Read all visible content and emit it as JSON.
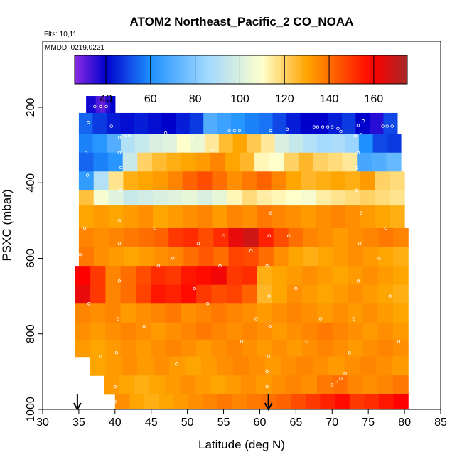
{
  "chart_data": {
    "type": "heatmap",
    "title": "ATOM2 Northeast_Pacific_2 CO_NOAA",
    "annotations": [
      "Flts: 10,11",
      "MMDD: 0219,0221"
    ],
    "xlabel": "Latitude (deg N)",
    "ylabel": "PSXC (mbar)",
    "xlim": [
      30,
      85
    ],
    "ylim": [
      1000,
      25
    ],
    "x_ticks": [
      30,
      35,
      40,
      45,
      50,
      55,
      60,
      65,
      70,
      75,
      80,
      85
    ],
    "y_ticks": [
      200,
      400,
      600,
      800,
      1000
    ],
    "colorbar": {
      "min": 26,
      "max": 175,
      "ticks": [
        40,
        60,
        80,
        100,
        120,
        140,
        160
      ],
      "colors": [
        "#8a2be2",
        "#0000cd",
        "#1e90ff",
        "#9fd8ff",
        "#ffffcc",
        "#ffa500",
        "#ff0000",
        "#a52a2a"
      ],
      "stops": [
        26,
        40,
        60,
        85,
        110,
        130,
        160,
        175
      ]
    },
    "arrows_at_latitude": [
      34.8,
      61.2
    ],
    "layers": [
      {
        "p": [
          170,
          215
        ],
        "lat": [
          36.0,
          40.0
        ],
        "values": [
          38,
          38,
          32,
          30,
          36,
          40
        ]
      },
      {
        "p": [
          215,
          270
        ],
        "lat": [
          35.0,
          79.0
        ],
        "values": [
          54,
          48,
          44,
          42,
          44,
          42,
          40,
          44,
          48,
          70,
          66,
          62,
          58,
          56,
          50,
          44,
          40,
          40,
          44,
          48,
          40,
          36,
          50
        ]
      },
      {
        "p": [
          270,
          320
        ],
        "lat": [
          35.0,
          79.5
        ],
        "values": [
          58,
          62,
          70,
          90,
          95,
          100,
          102,
          110,
          105,
          115,
          125,
          130,
          122,
          115,
          100,
          95,
          90,
          86,
          88,
          84,
          60,
          50,
          48
        ]
      },
      {
        "p": [
          320,
          370
        ],
        "lat": [
          35.0,
          79.5
        ],
        "values": [
          54,
          58,
          62,
          96,
          120,
          125,
          128,
          130,
          132,
          136,
          130,
          126,
          112,
          110,
          120,
          126,
          120,
          118,
          115,
          68,
          70,
          74
        ]
      },
      {
        "p": [
          370,
          420
        ],
        "lat": [
          35.0,
          80.0
        ],
        "values": [
          64,
          90,
          116,
          128,
          130,
          132,
          136,
          142,
          146,
          140,
          134,
          138,
          142,
          136,
          130,
          126,
          128,
          130,
          128,
          132,
          120,
          118
        ]
      },
      {
        "p": [
          420,
          460
        ],
        "lat": [
          35.0,
          80.0
        ],
        "values": [
          124,
          108,
          102,
          96,
          98,
          100,
          102,
          104,
          100,
          104,
          112,
          118,
          114,
          112,
          110,
          108,
          114,
          116,
          118,
          120,
          118,
          116
        ]
      },
      {
        "p": [
          460,
          520
        ],
        "lat": [
          35.0,
          80.0
        ],
        "values": [
          130,
          132,
          130,
          132,
          134,
          130,
          132,
          134,
          136,
          132,
          136,
          134,
          138,
          136,
          134,
          132,
          134,
          136,
          134,
          132,
          130,
          128
        ]
      },
      {
        "p": [
          520,
          570
        ],
        "lat": [
          35.0,
          80.5
        ],
        "values": [
          136,
          134,
          136,
          138,
          140,
          142,
          150,
          152,
          146,
          152,
          164,
          168,
          154,
          146,
          140,
          136,
          134,
          132,
          134,
          136,
          138,
          136
        ]
      },
      {
        "p": [
          570,
          620
        ],
        "lat": [
          35.0,
          80.5
        ],
        "values": [
          138,
          134,
          132,
          130,
          132,
          134,
          136,
          140,
          144,
          140,
          148,
          146,
          140,
          134,
          130,
          128,
          130,
          132,
          134,
          132,
          130,
          128
        ]
      },
      {
        "p": [
          620,
          670
        ],
        "lat": [
          34.5,
          80.5
        ],
        "values": [
          160,
          150,
          136,
          140,
          146,
          152,
          150,
          156,
          158,
          162,
          150,
          152,
          128,
          130,
          132,
          134,
          132,
          130,
          132,
          134,
          132,
          130
        ]
      },
      {
        "p": [
          670,
          720
        ],
        "lat": [
          34.5,
          80.5
        ],
        "values": [
          164,
          150,
          136,
          140,
          148,
          156,
          154,
          158,
          150,
          146,
          148,
          142,
          126,
          130,
          134,
          132,
          130,
          132,
          134,
          132,
          130,
          128
        ]
      },
      {
        "p": [
          720,
          770
        ],
        "lat": [
          34.5,
          80.5
        ],
        "values": [
          136,
          134,
          136,
          132,
          134,
          136,
          138,
          134,
          136,
          138,
          136,
          134,
          132,
          134,
          136,
          134,
          132,
          134,
          132,
          134,
          132,
          130
        ]
      },
      {
        "p": [
          770,
          815
        ],
        "lat": [
          34.5,
          80.5
        ],
        "values": [
          134,
          132,
          134,
          136,
          134,
          132,
          134,
          136,
          138,
          136,
          134,
          136,
          134,
          132,
          134,
          136,
          138,
          136,
          134,
          132,
          134,
          132
        ]
      },
      {
        "p": [
          815,
          860
        ],
        "lat": [
          34.5,
          80.5
        ],
        "values": [
          132,
          130,
          132,
          134,
          132,
          134,
          136,
          134,
          132,
          134,
          136,
          134,
          132,
          134,
          132,
          134,
          136,
          134,
          132,
          134,
          136,
          134
        ]
      },
      {
        "p": [
          860,
          910
        ],
        "lat": [
          36.5,
          80.5
        ],
        "values": [
          130,
          132,
          134,
          132,
          134,
          132,
          130,
          132,
          134,
          136,
          134,
          132,
          134,
          136,
          134,
          132,
          134,
          136,
          134,
          132
        ]
      },
      {
        "p": [
          910,
          960
        ],
        "lat": [
          38.5,
          80.5
        ],
        "values": [
          132,
          130,
          128,
          130,
          132,
          134,
          132,
          130,
          132,
          134,
          132,
          134,
          136,
          134,
          138,
          140,
          136,
          134,
          136,
          138
        ]
      },
      {
        "p": [
          960,
          1000
        ],
        "lat": [
          40.0,
          80.5
        ],
        "values": [
          134,
          130,
          128,
          130,
          132,
          134,
          136,
          138,
          136,
          138,
          140,
          142,
          146,
          150,
          154,
          158,
          150,
          152,
          156,
          160
        ]
      }
    ],
    "flight_points": [
      [
        36.3,
        240
      ],
      [
        37.2,
        198
      ],
      [
        38.0,
        198
      ],
      [
        38.8,
        198
      ],
      [
        39.5,
        250
      ],
      [
        41.5,
        275
      ],
      [
        42.0,
        275
      ],
      [
        47.0,
        268
      ],
      [
        50.5,
        280
      ],
      [
        53.5,
        312
      ],
      [
        55.8,
        262
      ],
      [
        56.5,
        262
      ],
      [
        57.2,
        262
      ],
      [
        61.5,
        262
      ],
      [
        63.8,
        258
      ],
      [
        67.5,
        252
      ],
      [
        68.0,
        252
      ],
      [
        68.7,
        252
      ],
      [
        69.4,
        252
      ],
      [
        70.0,
        252
      ],
      [
        70.8,
        256
      ],
      [
        71.2,
        264
      ],
      [
        73.2,
        276
      ],
      [
        73.6,
        248
      ],
      [
        74.0,
        266
      ],
      [
        74.3,
        236
      ],
      [
        77.0,
        250
      ],
      [
        77.6,
        250
      ],
      [
        78.3,
        250
      ],
      [
        73.6,
        320
      ],
      [
        73.4,
        360
      ],
      [
        73.4,
        420
      ],
      [
        74.0,
        480
      ],
      [
        73.8,
        560
      ],
      [
        73.6,
        660
      ],
      [
        73.0,
        760
      ],
      [
        72.4,
        850
      ],
      [
        71.8,
        905
      ],
      [
        71.2,
        918
      ],
      [
        70.6,
        925
      ],
      [
        70.0,
        935
      ],
      [
        40.6,
        280
      ],
      [
        40.6,
        320
      ],
      [
        40.8,
        360
      ],
      [
        40.8,
        420
      ],
      [
        40.6,
        500
      ],
      [
        40.6,
        560
      ],
      [
        40.6,
        660
      ],
      [
        40.4,
        760
      ],
      [
        40.2,
        850
      ],
      [
        40.0,
        940
      ],
      [
        40.0,
        980
      ],
      [
        61.2,
        430
      ],
      [
        61.5,
        480
      ],
      [
        61.3,
        540
      ],
      [
        61.0,
        620
      ],
      [
        61.3,
        700
      ],
      [
        61.4,
        780
      ],
      [
        61.2,
        860
      ],
      [
        61.0,
        900
      ],
      [
        61.0,
        940
      ],
      [
        36.0,
        320
      ],
      [
        36.2,
        380
      ],
      [
        35.8,
        520
      ],
      [
        35.2,
        590
      ],
      [
        36.4,
        720
      ],
      [
        38.0,
        860
      ],
      [
        44.0,
        780
      ],
      [
        46.0,
        620
      ],
      [
        48.5,
        880
      ],
      [
        51.5,
        560
      ],
      [
        52.8,
        720
      ],
      [
        54.5,
        620
      ],
      [
        57.5,
        820
      ],
      [
        58.8,
        580
      ],
      [
        65.0,
        680
      ],
      [
        66.5,
        820
      ],
      [
        68.4,
        760
      ],
      [
        76.5,
        600
      ],
      [
        78.0,
        700
      ],
      [
        79.2,
        820
      ],
      [
        77.4,
        520
      ],
      [
        64.0,
        540
      ],
      [
        45.5,
        520
      ],
      [
        48.0,
        600
      ],
      [
        51.0,
        680
      ],
      [
        55.0,
        540
      ],
      [
        59.5,
        760
      ]
    ]
  }
}
